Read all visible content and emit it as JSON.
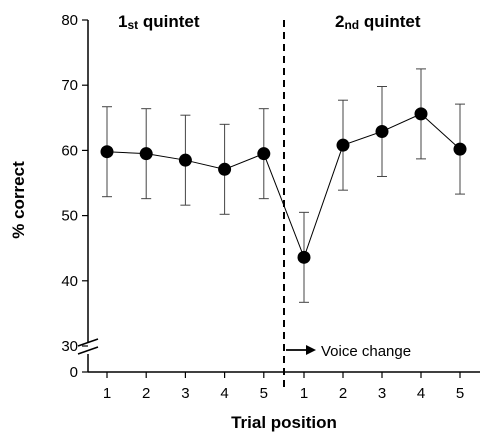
{
  "chart_data": {
    "type": "line",
    "ylabel": "% correct",
    "xlabel": "Trial position",
    "y_ticks": [
      "80",
      "70",
      "60",
      "50",
      "40",
      "30",
      "0"
    ],
    "y_tick_values": [
      80,
      70,
      60,
      50,
      40,
      30,
      0
    ],
    "y_axis_break": [
      0,
      30
    ],
    "ylim": [
      0,
      80
    ],
    "groups": [
      {
        "label": "1",
        "label_suffix": "st quintet",
        "categories": [
          "1",
          "2",
          "3",
          "4",
          "5"
        ]
      },
      {
        "label": "2",
        "label_suffix": "nd quintet",
        "categories": [
          "1",
          "2",
          "3",
          "4",
          "5"
        ]
      }
    ],
    "series": [
      {
        "values": [
          59.8,
          59.5,
          58.5,
          57.1,
          59.5,
          43.6,
          60.8,
          62.9,
          65.6,
          60.2
        ],
        "error": [
          6.9,
          6.9,
          6.9,
          6.9,
          6.9,
          6.9,
          6.9,
          6.9,
          6.9,
          6.9
        ]
      }
    ],
    "annotation": "Voice change",
    "grid": false,
    "legend": "none"
  }
}
